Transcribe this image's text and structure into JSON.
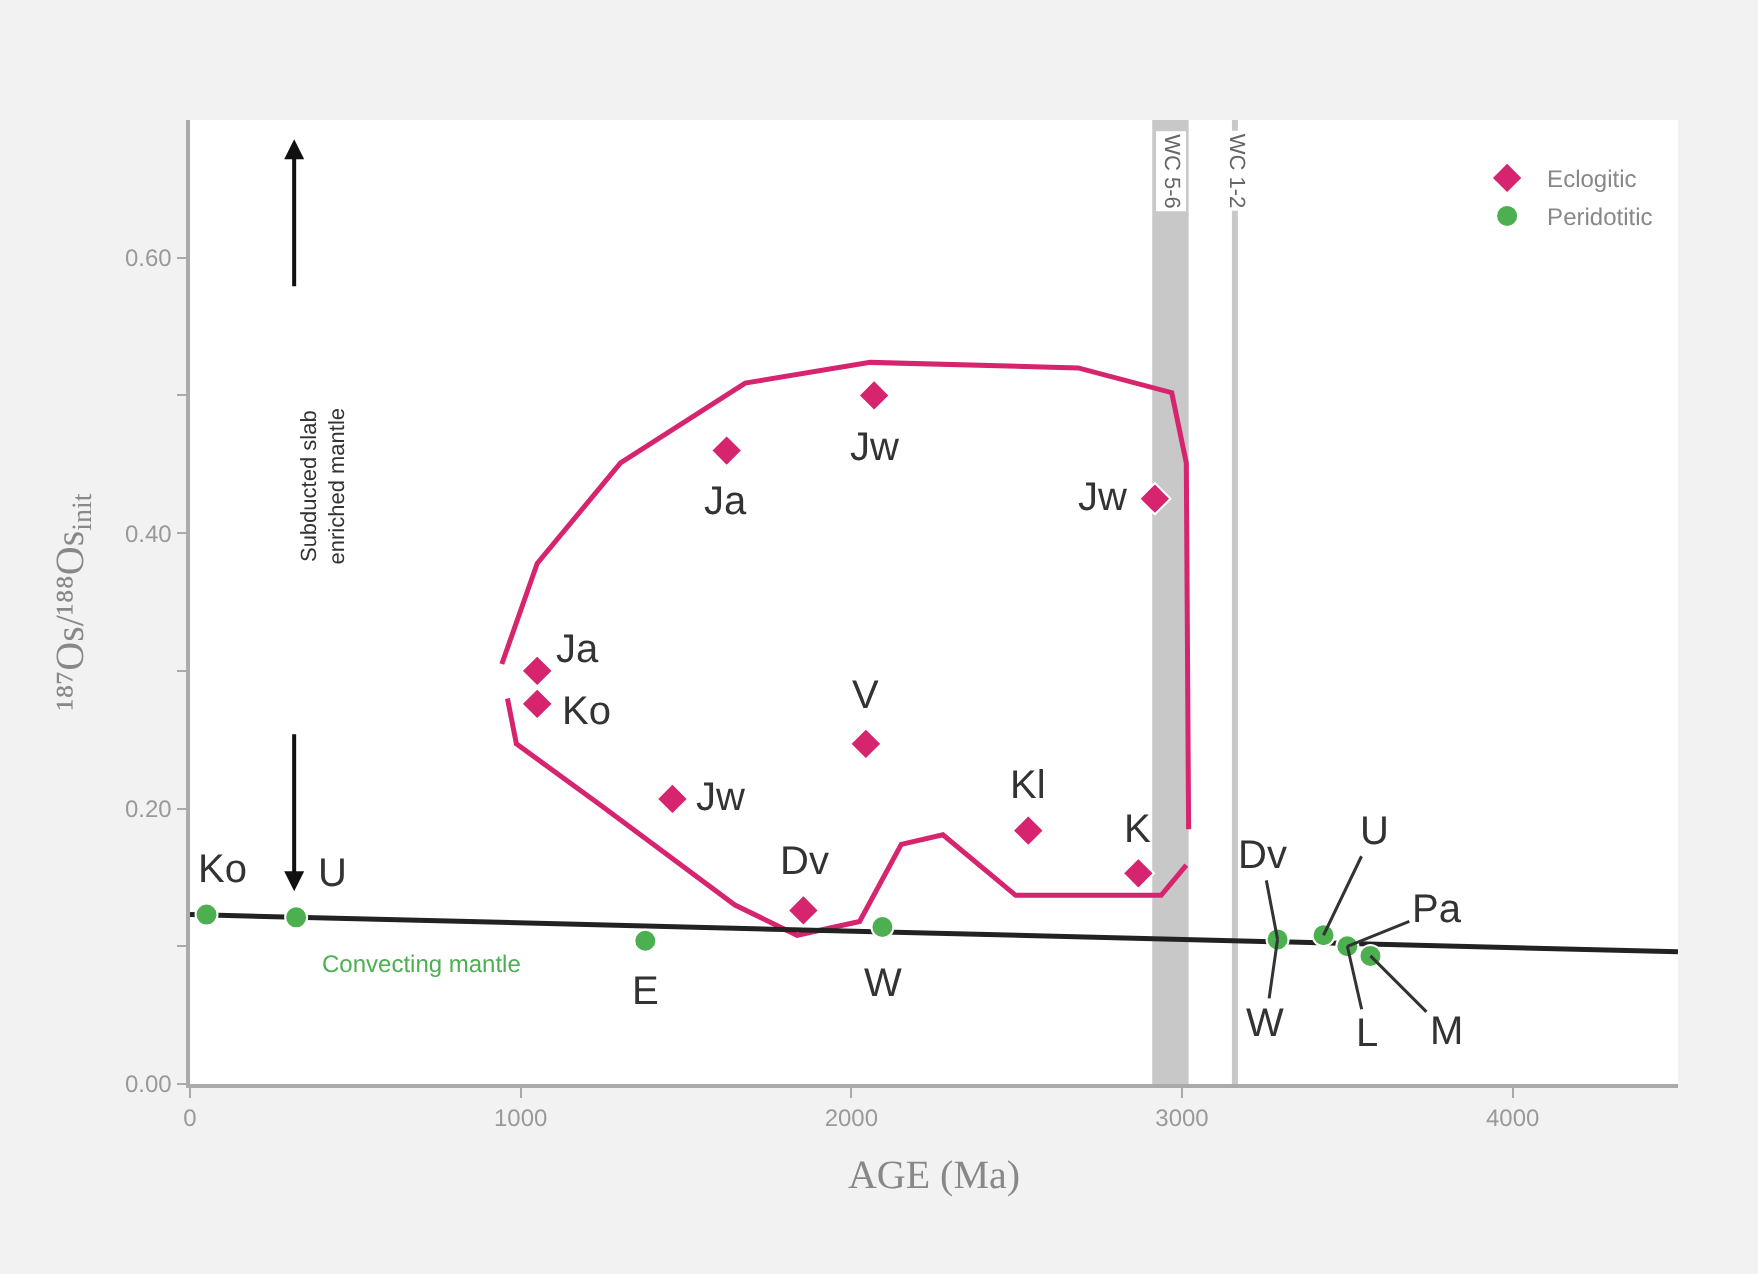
{
  "chart_data": {
    "type": "scatter",
    "xlabel": "AGE (Ma)",
    "ylabel": "¹⁸⁷Os/¹⁸⁸Os$_{init}$",
    "xlim": [
      0,
      4500
    ],
    "xticks": [
      0,
      1000,
      2000,
      3000,
      4000
    ],
    "ylim": [
      0,
      0.7
    ],
    "yticks": [
      {
        "value": 0,
        "label": "0.00"
      },
      {
        "value": 0.1,
        "label": null
      },
      {
        "value": 0.2,
        "label": "0.20"
      },
      {
        "value": 0.3,
        "label": null
      },
      {
        "value": 0.4,
        "label": "0.40"
      },
      {
        "value": 0.5,
        "label": null
      },
      {
        "value": 0.6,
        "label": "0.60"
      }
    ],
    "grid": false,
    "legend": "top right",
    "series": [
      {
        "type": "line",
        "color": "#d6246e",
        "line_style": "solid",
        "marker": "none",
        "x": [
          943,
          1050,
          1302,
          1679,
          2057,
          2686,
          2969,
          3013,
          3020
        ],
        "values": [
          0.305,
          0.378,
          0.451,
          0.509,
          0.524,
          0.52,
          0.502,
          0.451,
          0.185
        ]
      },
      {
        "type": "line",
        "color": "#d6246e",
        "line_style": "solid",
        "marker": "none",
        "x": [
          960,
          987,
          1239,
          1648,
          1836,
          2025,
          2151,
          2277,
          2497,
          2937,
          3013
        ],
        "values": [
          0.28,
          0.247,
          0.203,
          0.13,
          0.108,
          0.118,
          0.174,
          0.181,
          0.137,
          0.137,
          0.159
        ]
      },
      {
        "type": "line",
        "color": "#222222",
        "line_style": "solid",
        "marker": "none",
        "x": [
          0,
          4500
        ],
        "values": [
          0.123,
          0.096
        ]
      },
      {
        "name": "Eclogitic",
        "color": "#d6246e",
        "marker": "diamond",
        "x": [
          1623,
          2069,
          2918,
          1050,
          1050,
          2044,
          1459,
          2535,
          2868,
          1855
        ],
        "values": [
          0.46,
          0.5,
          0.425,
          0.3,
          0.276,
          0.247,
          0.207,
          0.184,
          0.153,
          0.126
        ]
      },
      {
        "name": "Peridotitic",
        "color": "#4caf50",
        "marker": "circle",
        "x": [
          50,
          321,
          1377,
          2094,
          3289,
          3428,
          3500,
          3570
        ],
        "values": [
          0.123,
          0.121,
          0.104,
          0.114,
          0.105,
          0.108,
          0.1,
          0.093
        ]
      }
    ],
    "bands": [
      {
        "axis": "x",
        "from": 2910,
        "to": 3020,
        "label": "WC 5-6",
        "color": "#c8c8c8"
      }
    ],
    "ref_lines": [
      {
        "axis": "x",
        "value": 3160,
        "label": "WC 1-2",
        "color": "#c8c8c8",
        "line_style": "solid"
      }
    ],
    "annotations": [
      {
        "text": "Ja",
        "x": 1623,
        "y": 0.46
      },
      {
        "text": "Jw",
        "x": 2069,
        "y": 0.5
      },
      {
        "text": "Jw",
        "x": 2918,
        "y": 0.425
      },
      {
        "text": "Ja",
        "x": 1050,
        "y": 0.3
      },
      {
        "text": "Ko",
        "x": 1050,
        "y": 0.276
      },
      {
        "text": "V",
        "x": 2044,
        "y": 0.247
      },
      {
        "text": "Jw",
        "x": 1459,
        "y": 0.207
      },
      {
        "text": "Kl",
        "x": 2535,
        "y": 0.184
      },
      {
        "text": "K",
        "x": 2868,
        "y": 0.153
      },
      {
        "text": "Dv",
        "x": 1855,
        "y": 0.126
      },
      {
        "text": "Ko",
        "x": 50,
        "y": 0.123
      },
      {
        "text": "U",
        "x": 321,
        "y": 0.121
      },
      {
        "text": "E",
        "x": 1377,
        "y": 0.104
      },
      {
        "text": "W",
        "x": 2094,
        "y": 0.114
      },
      {
        "text": "Dv",
        "x": 3289,
        "y": 0.105
      },
      {
        "text": "U",
        "x": 3428,
        "y": 0.108
      },
      {
        "text": "Pa",
        "x": 3500,
        "y": 0.1
      },
      {
        "text": "W",
        "x": 3289,
        "y": 0.105
      },
      {
        "text": "L",
        "x": 3500,
        "y": 0.1
      },
      {
        "text": "M",
        "x": 3570,
        "y": 0.093
      },
      {
        "text": "Convecting mantle",
        "x": 700,
        "y": 0.116
      },
      "Subducted slab enriched mantle"
    ]
  }
}
